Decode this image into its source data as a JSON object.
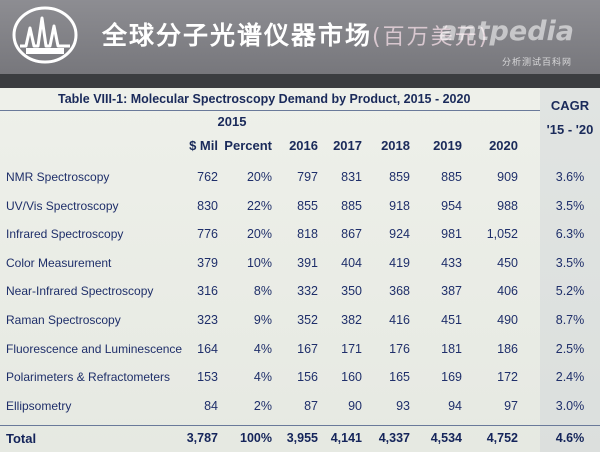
{
  "header": {
    "title_cn": "全球分子光谱仪器市场",
    "title_sub": "(百万美元)",
    "watermark": "antpedia",
    "watermark_sub": "分析测试百科网",
    "logo_icon": "chromatogram-peaks-logo"
  },
  "table": {
    "title": "Table VIII-1: Molecular Spectroscopy Demand by Product, 2015 - 2020",
    "group_2015": "2015",
    "col_mil": "$ Mil",
    "col_percent": "Percent",
    "years": [
      "2016",
      "2017",
      "2018",
      "2019",
      "2020"
    ],
    "cagr_label": "CAGR",
    "cagr_range": "'15 - '20",
    "rows": [
      {
        "label": "NMR Spectroscopy",
        "mil": "762",
        "pct": "20%",
        "v": [
          "797",
          "831",
          "859",
          "885",
          "909"
        ],
        "cagr": "3.6%"
      },
      {
        "label": "UV/Vis Spectroscopy",
        "mil": "830",
        "pct": "22%",
        "v": [
          "855",
          "885",
          "918",
          "954",
          "988"
        ],
        "cagr": "3.5%"
      },
      {
        "label": "Infrared Spectroscopy",
        "mil": "776",
        "pct": "20%",
        "v": [
          "818",
          "867",
          "924",
          "981",
          "1,052"
        ],
        "cagr": "6.3%"
      },
      {
        "label": "Color Measurement",
        "mil": "379",
        "pct": "10%",
        "v": [
          "391",
          "404",
          "419",
          "433",
          "450"
        ],
        "cagr": "3.5%"
      },
      {
        "label": "Near-Infrared Spectroscopy",
        "mil": "316",
        "pct": "8%",
        "v": [
          "332",
          "350",
          "368",
          "387",
          "406"
        ],
        "cagr": "5.2%"
      },
      {
        "label": "Raman Spectroscopy",
        "mil": "323",
        "pct": "9%",
        "v": [
          "352",
          "382",
          "416",
          "451",
          "490"
        ],
        "cagr": "8.7%"
      },
      {
        "label": "Fluorescence and Luminescence",
        "mil": "164",
        "pct": "4%",
        "v": [
          "167",
          "171",
          "176",
          "181",
          "186"
        ],
        "cagr": "2.5%"
      },
      {
        "label": "Polarimeters & Refractometers",
        "mil": "153",
        "pct": "4%",
        "v": [
          "156",
          "160",
          "165",
          "169",
          "172"
        ],
        "cagr": "2.4%"
      },
      {
        "label": "Ellipsometry",
        "mil": "84",
        "pct": "2%",
        "v": [
          "87",
          "90",
          "93",
          "94",
          "97"
        ],
        "cagr": "3.0%"
      }
    ],
    "total": {
      "label": "Total",
      "mil": "3,787",
      "pct": "100%",
      "v": [
        "3,955",
        "4,141",
        "4,337",
        "4,534",
        "4,752"
      ],
      "cagr": "4.6%"
    }
  },
  "colors": {
    "header_bg": "#808085",
    "panel_bg": "#eceee8",
    "text_blue": "#1f2f6a"
  }
}
